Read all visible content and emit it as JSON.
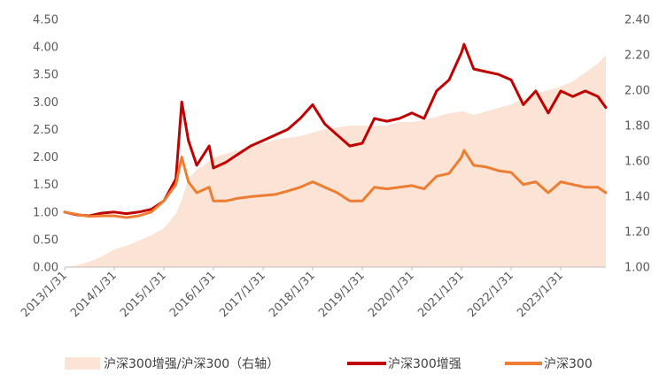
{
  "chart_data": {
    "type": "line",
    "title": "",
    "xlabel": "",
    "ylabel": "",
    "x_ticks": [
      "2013/1/31",
      "2014/1/31",
      "2015/1/31",
      "2016/1/31",
      "2017/1/31",
      "2018/1/31",
      "2019/1/31",
      "2020/1/31",
      "2021/1/31",
      "2022/1/31",
      "2023/1/31"
    ],
    "y_left": {
      "min": 0.0,
      "max": 4.5,
      "ticks": [
        "0.00",
        "0.50",
        "1.00",
        "1.50",
        "2.00",
        "2.50",
        "3.00",
        "3.50",
        "4.00",
        "4.50"
      ]
    },
    "y_right": {
      "min": 1.0,
      "max": 2.4,
      "ticks": [
        "1.00",
        "1.20",
        "1.40",
        "1.60",
        "1.80",
        "2.00",
        "2.20",
        "2.40"
      ]
    },
    "grid": false,
    "legend_position": "bottom",
    "x_dates": [
      "2013/1/31",
      "2013/4/30",
      "2013/7/31",
      "2013/10/31",
      "2014/1/31",
      "2014/4/30",
      "2014/7/31",
      "2014/10/31",
      "2015/1/31",
      "2015/4/30",
      "2015/6/12",
      "2015/7/31",
      "2015/9/30",
      "2015/12/31",
      "2016/1/31",
      "2016/4/30",
      "2016/7/31",
      "2016/10/31",
      "2017/1/31",
      "2017/4/30",
      "2017/7/31",
      "2017/10/31",
      "2018/1/31",
      "2018/4/30",
      "2018/7/31",
      "2018/10/31",
      "2019/1/31",
      "2019/4/30",
      "2019/7/31",
      "2019/10/31",
      "2020/1/31",
      "2020/4/30",
      "2020/7/31",
      "2020/10/31",
      "2021/1/31",
      "2021/2/18",
      "2021/4/30",
      "2021/7/31",
      "2021/10/31",
      "2022/1/31",
      "2022/4/30",
      "2022/7/31",
      "2022/10/31",
      "2023/1/31",
      "2023/4/30",
      "2023/7/31",
      "2023/10/31",
      "2023/12/29"
    ],
    "series": [
      {
        "name": "沪深300增强/沪深300（右轴）",
        "axis": "right",
        "style": "area",
        "color": "#FBE3D5",
        "values": [
          1.0,
          1.01,
          1.03,
          1.06,
          1.1,
          1.12,
          1.15,
          1.18,
          1.22,
          1.3,
          1.38,
          1.5,
          1.55,
          1.6,
          1.62,
          1.64,
          1.66,
          1.68,
          1.7,
          1.72,
          1.73,
          1.74,
          1.76,
          1.78,
          1.79,
          1.8,
          1.8,
          1.8,
          1.8,
          1.82,
          1.82,
          1.83,
          1.85,
          1.87,
          1.88,
          1.88,
          1.86,
          1.88,
          1.9,
          1.92,
          1.95,
          1.98,
          2.0,
          2.02,
          2.05,
          2.1,
          2.15,
          2.2
        ]
      },
      {
        "name": "沪深300增强",
        "axis": "left",
        "style": "line",
        "color": "#C00000",
        "values": [
          1.0,
          0.95,
          0.93,
          0.98,
          1.0,
          0.97,
          1.0,
          1.05,
          1.2,
          1.6,
          3.0,
          2.3,
          1.85,
          2.2,
          1.8,
          1.9,
          2.05,
          2.2,
          2.3,
          2.4,
          2.5,
          2.7,
          2.95,
          2.6,
          2.4,
          2.2,
          2.25,
          2.7,
          2.65,
          2.7,
          2.8,
          2.7,
          3.2,
          3.4,
          3.9,
          4.05,
          3.6,
          3.55,
          3.5,
          3.4,
          2.95,
          3.2,
          2.8,
          3.2,
          3.1,
          3.2,
          3.1,
          2.9
        ]
      },
      {
        "name": "沪深300",
        "axis": "left",
        "style": "line",
        "color": "#ED7D31",
        "values": [
          1.0,
          0.96,
          0.92,
          0.93,
          0.93,
          0.9,
          0.93,
          1.0,
          1.2,
          1.5,
          2.0,
          1.55,
          1.35,
          1.45,
          1.2,
          1.2,
          1.25,
          1.28,
          1.3,
          1.32,
          1.38,
          1.45,
          1.55,
          1.45,
          1.35,
          1.2,
          1.2,
          1.45,
          1.42,
          1.45,
          1.48,
          1.42,
          1.65,
          1.7,
          2.0,
          2.12,
          1.85,
          1.82,
          1.75,
          1.72,
          1.5,
          1.55,
          1.35,
          1.55,
          1.5,
          1.45,
          1.45,
          1.35
        ]
      }
    ]
  }
}
